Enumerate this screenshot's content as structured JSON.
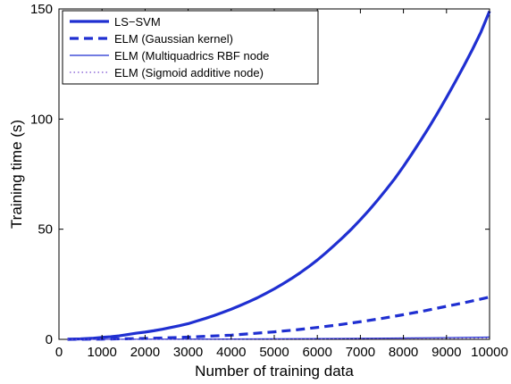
{
  "chart_data": {
    "type": "line",
    "title": "",
    "xlabel": "Number of training data",
    "ylabel": "Training time (s)",
    "xlim": [
      0,
      10000
    ],
    "ylim": [
      0,
      150
    ],
    "xticks": [
      0,
      1000,
      2000,
      3000,
      4000,
      5000,
      6000,
      7000,
      8000,
      9000,
      10000
    ],
    "yticks": [
      0,
      50,
      100,
      150
    ],
    "grid": false,
    "legend_position": "top-left",
    "series": [
      {
        "name": "LS−SVM",
        "color": "#1f2fd1",
        "style": "solid-thick",
        "x": [
          200,
          500,
          800,
          1000,
          1200,
          1400,
          1600,
          1800,
          2000,
          2200,
          2400,
          2600,
          2800,
          3000,
          3200,
          3400,
          3600,
          3800,
          4000,
          4200,
          4400,
          4600,
          4800,
          5000,
          5200,
          5400,
          5600,
          5800,
          6000,
          6200,
          6400,
          6600,
          6800,
          7000,
          7200,
          7400,
          7600,
          7800,
          8000,
          8200,
          8400,
          8600,
          8800,
          9000,
          9200,
          9400,
          9600,
          9800,
          10000
        ],
        "y": [
          0.05,
          0.2,
          0.5,
          0.9,
          1.2,
          1.6,
          2.2,
          2.8,
          3.3,
          3.9,
          4.6,
          5.4,
          6.2,
          7.1,
          8.3,
          9.5,
          10.8,
          12.2,
          13.7,
          15.3,
          17.0,
          18.8,
          20.8,
          22.9,
          25.2,
          27.6,
          30.2,
          33.0,
          36.0,
          39.3,
          42.8,
          46.4,
          50.2,
          54.3,
          58.6,
          63.2,
          68.0,
          73.0,
          78.5,
          84.3,
          90.3,
          96.5,
          103.0,
          109.8,
          116.8,
          124.0,
          131.5,
          139.5,
          149.0
        ]
      },
      {
        "name": "ELM (Gaussian kernel)",
        "color": "#1f2fd1",
        "style": "dashed-thick",
        "x": [
          200,
          1000,
          2000,
          3000,
          4000,
          5000,
          5500,
          6000,
          6500,
          7000,
          7500,
          8000,
          8500,
          9000,
          9500,
          10000
        ],
        "y": [
          0,
          0.1,
          0.4,
          1.0,
          1.9,
          3.4,
          4.3,
          5.4,
          6.6,
          8.0,
          9.5,
          11.2,
          13.0,
          15.0,
          17.0,
          19.2
        ]
      },
      {
        "name": "ELM (Multiquadrics RBF node",
        "color": "#1f2fd1",
        "style": "solid-thin",
        "x": [
          200,
          2000,
          4000,
          6000,
          8000,
          10000
        ],
        "y": [
          0,
          0.05,
          0.15,
          0.35,
          0.6,
          1.0
        ]
      },
      {
        "name": "ELM (Sigmoid additive node)",
        "color": "#7a4fd0",
        "style": "dotted",
        "x": [
          200,
          2000,
          4000,
          6000,
          8000,
          10000
        ],
        "y": [
          0,
          0.03,
          0.1,
          0.2,
          0.35,
          0.55
        ]
      }
    ]
  }
}
